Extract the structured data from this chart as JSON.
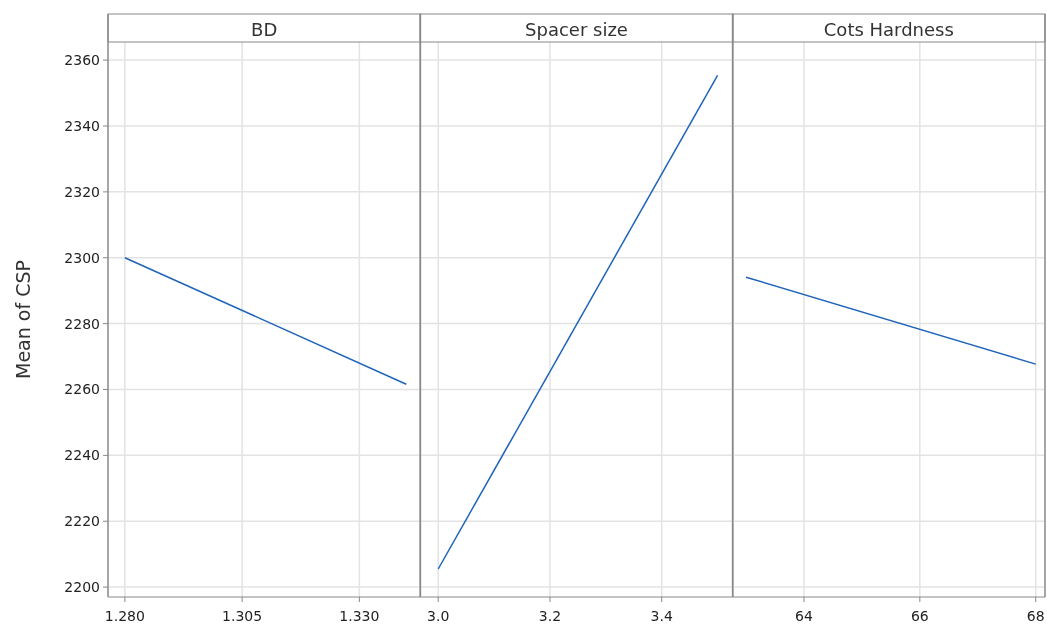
{
  "chart_data": [
    {
      "type": "line",
      "title": "BD",
      "ylabel": "Mean of CSP",
      "x": [
        1.28,
        1.34
      ],
      "series": [
        {
          "color": "#1f64b8",
          "values": [
            2300,
            2261.6
          ]
        }
      ],
      "xlim": [
        1.2764,
        1.343
      ],
      "xticks": [
        {
          "value": 1.28,
          "label": "1.280"
        },
        {
          "value": 1.305,
          "label": "1.305"
        },
        {
          "value": 1.33,
          "label": "1.330"
        }
      ],
      "ylim": [
        2197,
        2365.5
      ],
      "yticks": [
        2200,
        2220,
        2240,
        2260,
        2280,
        2300,
        2320,
        2340,
        2360
      ],
      "grid": true
    },
    {
      "type": "line",
      "title": "Spacer size",
      "x": [
        3.0,
        3.5
      ],
      "series": [
        {
          "color": "#1f64b8",
          "values": [
            2205.5,
            2355.4
          ]
        }
      ],
      "xlim": [
        2.968,
        3.527
      ],
      "xticks": [
        {
          "value": 3,
          "label": "3.0"
        },
        {
          "value": 3.2,
          "label": "3.2"
        },
        {
          "value": 3.4,
          "label": "3.4"
        }
      ],
      "ylim": [
        2197,
        2365.5
      ],
      "yticks": [
        2200,
        2220,
        2240,
        2260,
        2280,
        2300,
        2320,
        2340,
        2360
      ],
      "grid": true,
      "tick_labels": "x"
    },
    {
      "type": "line",
      "title": "Cots Hardness",
      "x": [
        63,
        68
      ],
      "series": [
        {
          "color": "#1f64b8",
          "values": [
            2294.1,
            2267.7
          ]
        }
      ],
      "xlim": [
        62.77,
        68.16
      ],
      "xticks": [
        64,
        66,
        68
      ],
      "ylim": [
        2197,
        2365.5
      ],
      "yticks": [
        2200,
        2220,
        2240,
        2260,
        2280,
        2300,
        2320,
        2340,
        2360
      ],
      "grid": true,
      "tick_labels": "x"
    }
  ]
}
